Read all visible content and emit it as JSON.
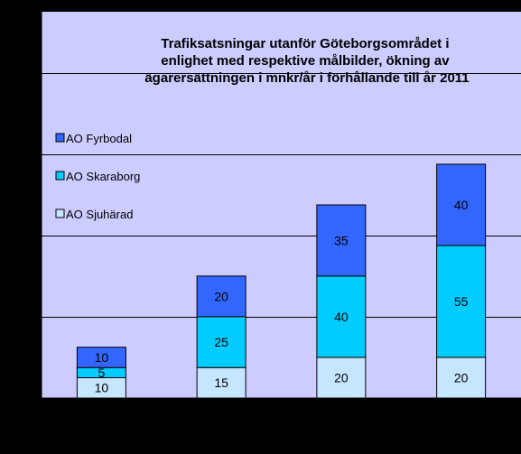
{
  "chart_data": {
    "type": "bar",
    "stacked": true,
    "title": "Trafiksatsningar utanför Göteborgsområdet i enlighet med respektive målbilder, ökning av ägarersättningen i mnkr/år i förhållande till år 2011",
    "title_lines": [
      "Trafiksatsningar utanför Göteborgsområdet i",
      "enlighet med respektive målbilder, ökning av",
      "ägarersättningen i mnkr/år i förhållande till år 2011"
    ],
    "categories": [
      "",
      "",
      "",
      ""
    ],
    "ylim": [
      0,
      190
    ],
    "grid": true,
    "legend_position": "left",
    "series": [
      {
        "name": "AO Sjuhärad",
        "color": "#c6e6ff",
        "values": [
          10,
          15,
          20,
          20
        ]
      },
      {
        "name": "AO Skaraborg",
        "color": "#00ccff",
        "values": [
          5,
          25,
          40,
          55
        ]
      },
      {
        "name": "AO Fyrbodal",
        "color": "#3366ff",
        "values": [
          10,
          20,
          35,
          40
        ]
      }
    ],
    "legend_order": [
      "AO Fyrbodal",
      "AO Skaraborg",
      "AO Sjuhärad"
    ],
    "plot_background": "#ccccff"
  }
}
